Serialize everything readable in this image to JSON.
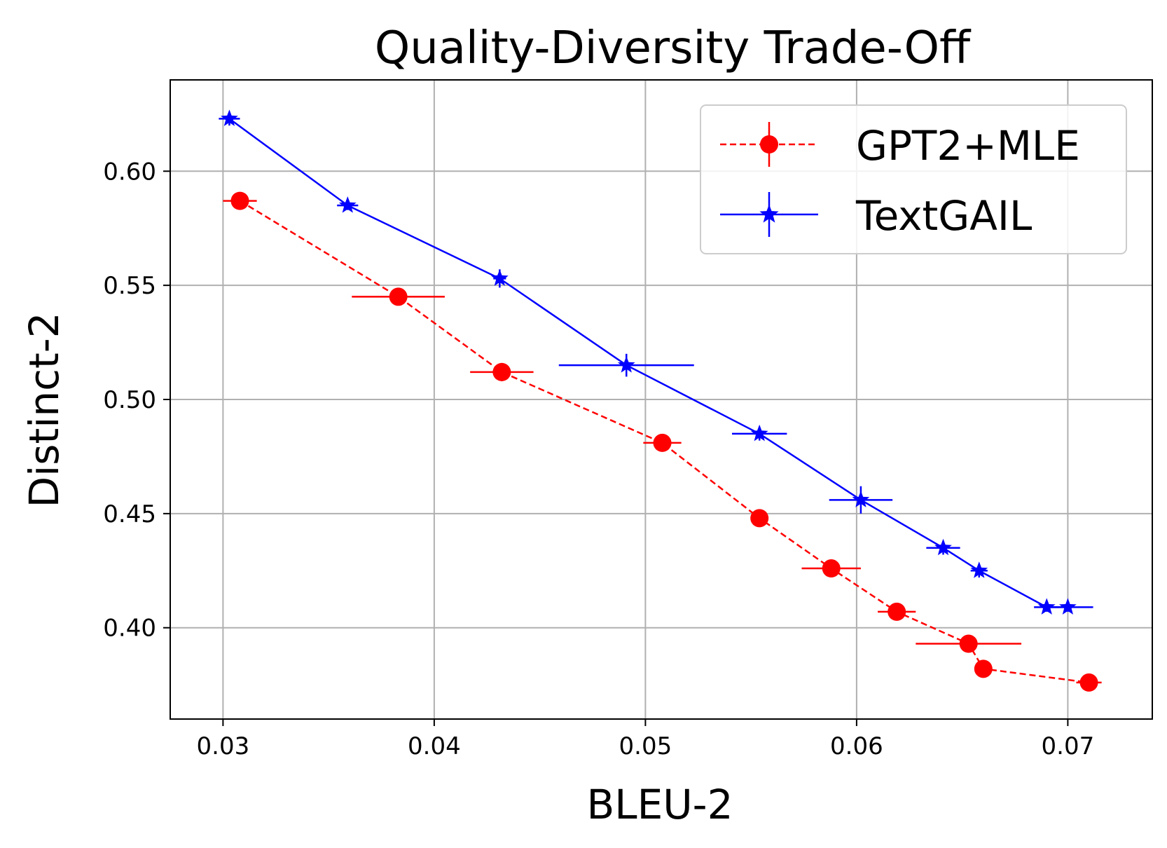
{
  "chart_data": {
    "type": "line",
    "title": "Quality-Diversity Trade-Off",
    "xlabel": "BLEU-2",
    "ylabel": "Distinct-2",
    "xlim": [
      0.0275,
      0.074
    ],
    "ylim": [
      0.36,
      0.64
    ],
    "x_ticks": [
      0.03,
      0.04,
      0.05,
      0.06,
      0.07
    ],
    "x_tick_labels": [
      "0.03",
      "0.04",
      "0.05",
      "0.06",
      "0.07"
    ],
    "y_ticks": [
      0.4,
      0.45,
      0.5,
      0.55,
      0.6
    ],
    "y_tick_labels": [
      "0.40",
      "0.45",
      "0.50",
      "0.55",
      "0.60"
    ],
    "grid": true,
    "legend_position": "top-right",
    "series": [
      {
        "name": "GPT2+MLE",
        "color": "#ff0000",
        "line_style": "dashed",
        "marker": "circle",
        "points": [
          {
            "x": 0.0308,
            "y": 0.587,
            "xerr": 0.0008,
            "yerr": 0.002
          },
          {
            "x": 0.0383,
            "y": 0.545,
            "xerr": 0.0022,
            "yerr": 0.002
          },
          {
            "x": 0.0432,
            "y": 0.512,
            "xerr": 0.0015,
            "yerr": 0.004
          },
          {
            "x": 0.0508,
            "y": 0.481,
            "xerr": 0.0009,
            "yerr": 0.003
          },
          {
            "x": 0.0554,
            "y": 0.448,
            "xerr": 0.0003,
            "yerr": 0.002
          },
          {
            "x": 0.0588,
            "y": 0.426,
            "xerr": 0.0014,
            "yerr": 0.002
          },
          {
            "x": 0.0619,
            "y": 0.407,
            "xerr": 0.0009,
            "yerr": 0.003
          },
          {
            "x": 0.0653,
            "y": 0.393,
            "xerr": 0.0025,
            "yerr": 0.002
          },
          {
            "x": 0.066,
            "y": 0.382,
            "xerr": 0.0002,
            "yerr": 0.002
          },
          {
            "x": 0.071,
            "y": 0.376,
            "xerr": 0.0006,
            "yerr": 0.002
          }
        ]
      },
      {
        "name": "TextGAIL",
        "color": "#0000ff",
        "line_style": "solid",
        "marker": "star",
        "points": [
          {
            "x": 0.0303,
            "y": 0.623,
            "xerr": 0.0005,
            "yerr": 0.003
          },
          {
            "x": 0.0359,
            "y": 0.585,
            "xerr": 0.0005,
            "yerr": 0.002
          },
          {
            "x": 0.0431,
            "y": 0.553,
            "xerr": 0.0003,
            "yerr": 0.004
          },
          {
            "x": 0.0491,
            "y": 0.515,
            "xerr": 0.0032,
            "yerr": 0.005
          },
          {
            "x": 0.0554,
            "y": 0.485,
            "xerr": 0.0013,
            "yerr": 0.003
          },
          {
            "x": 0.0602,
            "y": 0.456,
            "xerr": 0.0015,
            "yerr": 0.006
          },
          {
            "x": 0.0641,
            "y": 0.435,
            "xerr": 0.0008,
            "yerr": 0.003
          },
          {
            "x": 0.0658,
            "y": 0.425,
            "xerr": 0.0004,
            "yerr": 0.003
          },
          {
            "x": 0.069,
            "y": 0.409,
            "xerr": 0.0006,
            "yerr": 0.002
          },
          {
            "x": 0.07,
            "y": 0.409,
            "xerr": 0.0012,
            "yerr": 0.002
          }
        ]
      }
    ]
  }
}
